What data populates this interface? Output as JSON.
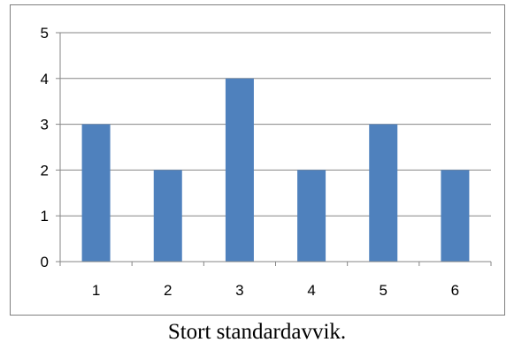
{
  "chart_data": {
    "type": "bar",
    "categories": [
      "1",
      "2",
      "3",
      "4",
      "5",
      "6"
    ],
    "values": [
      3,
      2,
      4,
      2,
      3,
      2
    ],
    "title": "",
    "xlabel": "",
    "ylabel": "",
    "ylim": [
      0,
      5
    ],
    "yticks": [
      "0",
      "1",
      "2",
      "3",
      "4",
      "5"
    ],
    "grid": true,
    "legend": "none",
    "bar_color": "#4f81bd"
  },
  "caption": "Stort standardavvik."
}
